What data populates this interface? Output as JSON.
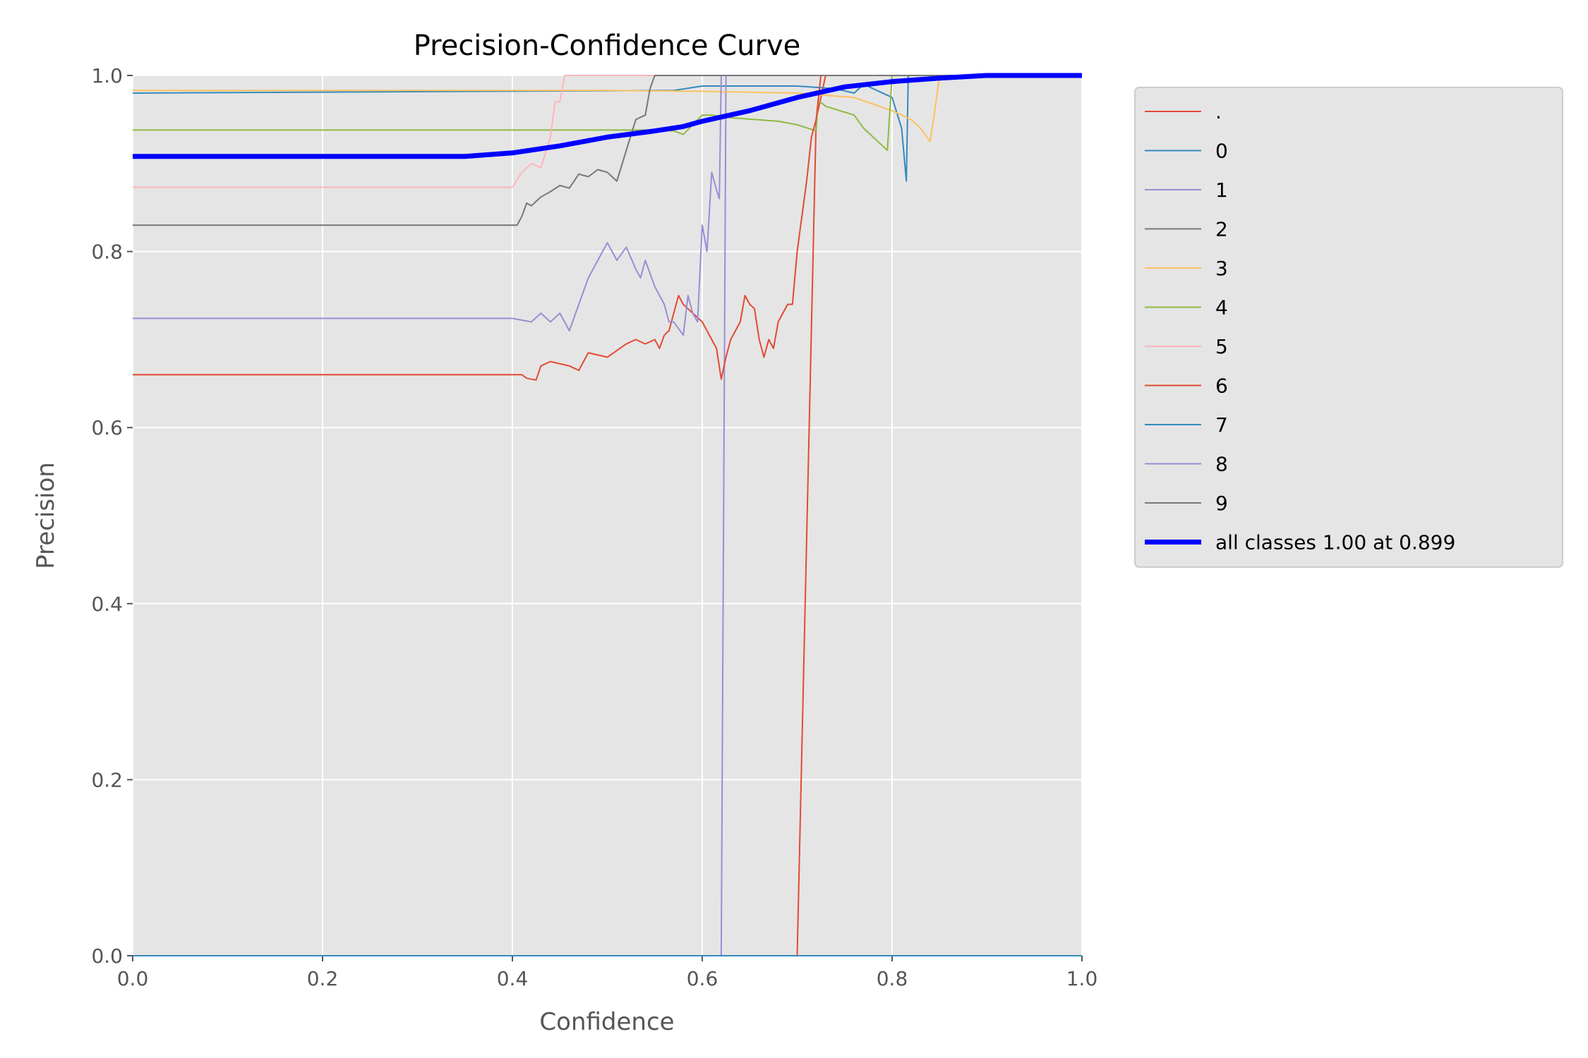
{
  "chart_data": {
    "type": "line",
    "title": "Precision-Confidence Curve",
    "xlabel": "Confidence",
    "ylabel": "Precision",
    "xlim": [
      0.0,
      1.0
    ],
    "ylim": [
      0.0,
      1.0
    ],
    "xticks": [
      "0.0",
      "0.2",
      "0.4",
      "0.6",
      "0.8",
      "1.0"
    ],
    "yticks": [
      "0.0",
      "0.2",
      "0.4",
      "0.6",
      "0.8",
      "1.0"
    ],
    "grid": true,
    "legend_position": "outside-top-right",
    "background": "#e5e5e5",
    "series": [
      {
        "name": ".",
        "color": "#e24a33",
        "width": 2,
        "x": [
          0.0,
          0.41,
          0.7,
          0.72,
          0.73,
          1.0
        ],
        "y": [
          0.0,
          0.0,
          0.0,
          0.95,
          1.0,
          1.0
        ]
      },
      {
        "name": "0",
        "color": "#348abd",
        "width": 2,
        "x": [
          0.0,
          0.57,
          0.6,
          0.7,
          0.74,
          0.76,
          0.77,
          0.8,
          0.81,
          0.815,
          0.817,
          0.82,
          1.0
        ],
        "y": [
          0.98,
          0.983,
          0.988,
          0.988,
          0.985,
          0.98,
          0.99,
          0.975,
          0.94,
          0.88,
          1.0,
          1.0,
          1.0
        ]
      },
      {
        "name": "1",
        "color": "#988ed5",
        "width": 2,
        "x": [
          0.0,
          0.5,
          0.52,
          0.54,
          0.55,
          0.56,
          0.58,
          0.6,
          0.61,
          0.62,
          0.625,
          1.0
        ],
        "y": [
          0.0,
          0.0,
          0.0,
          0.0,
          0.0,
          0.0,
          0.0,
          0.0,
          0.0,
          0.0,
          1.0,
          1.0
        ]
      },
      {
        "name": "2",
        "color": "#777777",
        "width": 2,
        "x": [
          0.0,
          0.2,
          0.4,
          0.5,
          0.6,
          0.7,
          0.8,
          0.9,
          1.0
        ],
        "y": [
          0.0,
          0.0,
          0.0,
          0.0,
          0.0,
          0.0,
          0.0,
          0.0,
          0.0
        ]
      },
      {
        "name": "3",
        "color": "#fbc15e",
        "width": 2,
        "x": [
          0.0,
          0.5,
          0.6,
          0.7,
          0.76,
          0.8,
          0.82,
          0.83,
          0.84,
          0.845,
          0.85,
          1.0
        ],
        "y": [
          0.983,
          0.983,
          0.982,
          0.98,
          0.975,
          0.96,
          0.95,
          0.94,
          0.925,
          0.96,
          1.0,
          1.0
        ]
      },
      {
        "name": "4",
        "color": "#8eba42",
        "width": 2,
        "x": [
          0.0,
          0.55,
          0.57,
          0.58,
          0.6,
          0.61,
          0.63,
          0.68,
          0.7,
          0.72,
          0.722,
          0.73,
          0.76,
          0.77,
          0.79,
          0.795,
          0.8,
          1.0
        ],
        "y": [
          0.938,
          0.938,
          0.937,
          0.933,
          0.955,
          0.955,
          0.952,
          0.948,
          0.944,
          0.937,
          0.972,
          0.965,
          0.955,
          0.94,
          0.92,
          0.915,
          1.0,
          1.0
        ]
      },
      {
        "name": "5",
        "color": "#ffb5b8",
        "width": 2,
        "x": [
          0.0,
          0.4,
          0.41,
          0.42,
          0.43,
          0.44,
          0.445,
          0.45,
          0.455,
          1.0
        ],
        "y": [
          0.873,
          0.873,
          0.89,
          0.9,
          0.895,
          0.93,
          0.97,
          0.97,
          1.0,
          1.0
        ]
      },
      {
        "name": "6",
        "color": "#e24a33",
        "width": 2,
        "x": [
          0.0,
          0.41,
          0.415,
          0.425,
          0.43,
          0.44,
          0.46,
          0.47,
          0.48,
          0.5,
          0.52,
          0.53,
          0.54,
          0.55,
          0.555,
          0.56,
          0.565,
          0.57,
          0.575,
          0.58,
          0.59,
          0.6,
          0.61,
          0.615,
          0.62,
          0.625,
          0.63,
          0.64,
          0.645,
          0.65,
          0.655,
          0.66,
          0.665,
          0.67,
          0.675,
          0.68,
          0.69,
          0.695,
          0.7,
          0.71,
          0.715,
          0.72,
          0.725,
          1.0
        ],
        "y": [
          0.66,
          0.66,
          0.656,
          0.654,
          0.67,
          0.675,
          0.67,
          0.665,
          0.685,
          0.68,
          0.695,
          0.7,
          0.695,
          0.7,
          0.69,
          0.705,
          0.71,
          0.73,
          0.75,
          0.74,
          0.73,
          0.72,
          0.7,
          0.69,
          0.655,
          0.68,
          0.7,
          0.72,
          0.75,
          0.74,
          0.735,
          0.7,
          0.68,
          0.7,
          0.69,
          0.72,
          0.74,
          0.74,
          0.8,
          0.88,
          0.93,
          0.95,
          1.0,
          1.0
        ]
      },
      {
        "name": "7",
        "color": "#348abd",
        "width": 2,
        "x": [
          0.0,
          1.0
        ],
        "y": [
          0.0,
          0.0
        ]
      },
      {
        "name": "8",
        "color": "#988ed5",
        "width": 2,
        "x": [
          0.0,
          0.4,
          0.42,
          0.43,
          0.44,
          0.45,
          0.46,
          0.47,
          0.48,
          0.49,
          0.5,
          0.51,
          0.52,
          0.53,
          0.535,
          0.54,
          0.55,
          0.56,
          0.565,
          0.57,
          0.58,
          0.585,
          0.59,
          0.595,
          0.6,
          0.605,
          0.61,
          0.615,
          0.618,
          0.62,
          1.0
        ],
        "y": [
          0.724,
          0.724,
          0.72,
          0.73,
          0.72,
          0.73,
          0.71,
          0.74,
          0.77,
          0.79,
          0.81,
          0.79,
          0.805,
          0.78,
          0.77,
          0.79,
          0.76,
          0.74,
          0.72,
          0.72,
          0.705,
          0.75,
          0.73,
          0.72,
          0.83,
          0.8,
          0.89,
          0.87,
          0.86,
          1.0,
          1.0
        ]
      },
      {
        "name": "9",
        "color": "#777777",
        "width": 2,
        "x": [
          0.0,
          0.405,
          0.41,
          0.415,
          0.42,
          0.43,
          0.44,
          0.45,
          0.46,
          0.47,
          0.48,
          0.49,
          0.5,
          0.51,
          0.52,
          0.53,
          0.54,
          0.545,
          0.55,
          1.0
        ],
        "y": [
          0.83,
          0.83,
          0.84,
          0.855,
          0.852,
          0.862,
          0.868,
          0.875,
          0.872,
          0.888,
          0.885,
          0.893,
          0.89,
          0.88,
          0.915,
          0.95,
          0.955,
          0.985,
          1.0,
          1.0
        ]
      },
      {
        "name": "all classes 1.00 at 0.899",
        "color": "#0000ff",
        "width": 7,
        "x": [
          0.0,
          0.35,
          0.4,
          0.45,
          0.5,
          0.55,
          0.58,
          0.6,
          0.65,
          0.7,
          0.75,
          0.8,
          0.85,
          0.899,
          1.0
        ],
        "y": [
          0.908,
          0.908,
          0.912,
          0.92,
          0.93,
          0.937,
          0.942,
          0.948,
          0.96,
          0.975,
          0.987,
          0.993,
          0.997,
          1.0,
          1.0
        ]
      }
    ]
  }
}
